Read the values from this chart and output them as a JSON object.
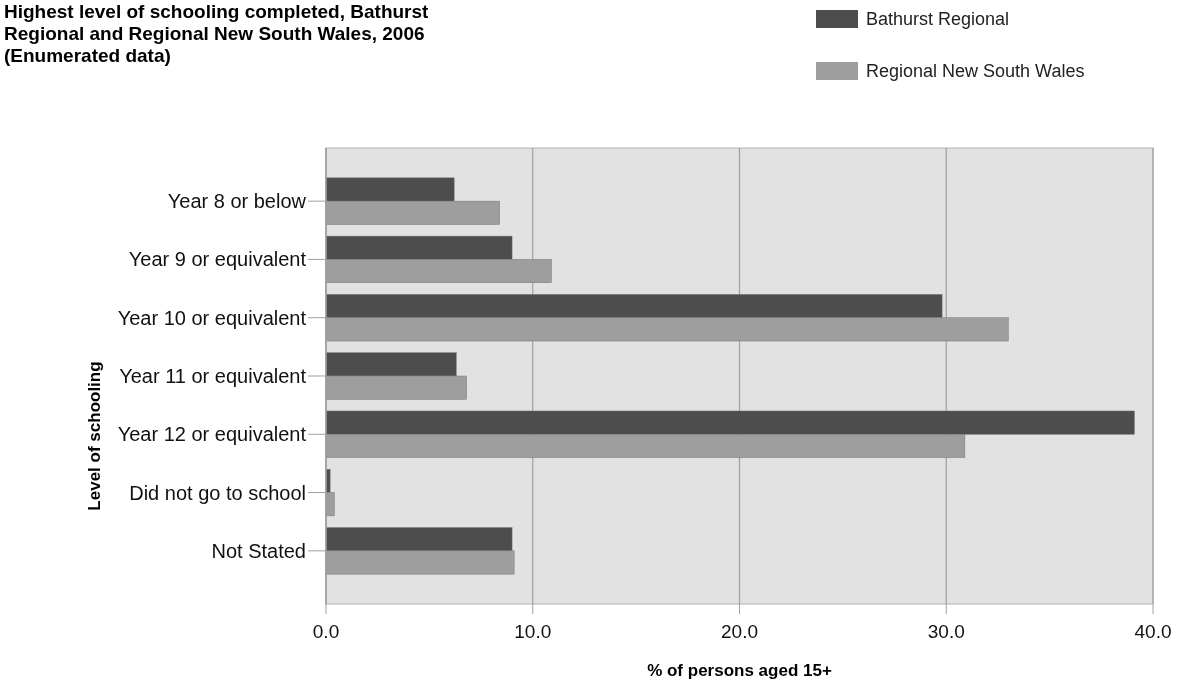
{
  "chart_data": {
    "type": "bar",
    "orientation": "horizontal",
    "title": "Highest level of schooling completed, Bathurst Regional and Regional New South Wales, 2006 (Enumerated data)",
    "xlabel": "% of persons aged 15+",
    "ylabel": "Level of schooling",
    "categories": [
      "Year 8 or below",
      "Year 9 or equivalent",
      "Year 10 or equivalent",
      "Year 11 or equivalent",
      "Year 12 or equivalent",
      "Did not go to school",
      "Not Stated"
    ],
    "series": [
      {
        "name": "Bathurst Regional",
        "color": "#4d4d4d",
        "values": [
          6.2,
          9.0,
          29.8,
          6.3,
          39.1,
          0.2,
          9.0
        ]
      },
      {
        "name": "Regional New South Wales",
        "color": "#9e9e9e",
        "values": [
          8.4,
          10.9,
          33.0,
          6.8,
          30.9,
          0.4,
          9.1
        ]
      }
    ],
    "xlim": [
      0,
      40
    ],
    "xticks": [
      {
        "value": 0,
        "label": "0.0"
      },
      {
        "value": 10,
        "label": "10.0"
      },
      {
        "value": 20,
        "label": "20.0"
      },
      {
        "value": 30,
        "label": "30.0"
      },
      {
        "value": 40,
        "label": "40.0"
      }
    ],
    "grid": "x",
    "legend": "top right"
  }
}
